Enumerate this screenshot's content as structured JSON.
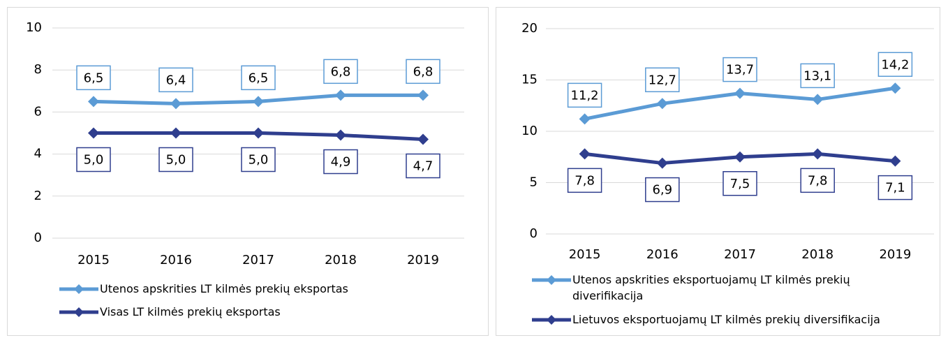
{
  "chart_data": [
    {
      "type": "line",
      "categories": [
        "2015",
        "2016",
        "2017",
        "2018",
        "2019"
      ],
      "ylim": [
        0,
        10
      ],
      "yticks": [
        0,
        2,
        4,
        6,
        8,
        10
      ],
      "grid": true,
      "legend": "bottom",
      "series": [
        {
          "name": "Utenos apskrities LT kilmės prekių eksportas",
          "color": "#5b9bd5",
          "values": [
            6.5,
            6.4,
            6.5,
            6.8,
            6.8
          ],
          "value_labels": [
            "6,5",
            "6,4",
            "6,5",
            "6,8",
            "6,8"
          ]
        },
        {
          "name": "Visas LT kilmės prekių eksportas",
          "color": "#2f3e8e",
          "values": [
            5.0,
            5.0,
            5.0,
            4.9,
            4.7
          ],
          "value_labels": [
            "5,0",
            "5,0",
            "5,0",
            "4,9",
            "4,7"
          ]
        }
      ]
    },
    {
      "type": "line",
      "categories": [
        "2015",
        "2016",
        "2017",
        "2018",
        "2019"
      ],
      "ylim": [
        0,
        20
      ],
      "yticks": [
        0,
        5,
        10,
        15,
        20
      ],
      "grid": true,
      "legend": "bottom",
      "series": [
        {
          "name": "Utenos apskrities eksportuojamų LT kilmės prekių diverifikacija",
          "color": "#5b9bd5",
          "values": [
            11.2,
            12.7,
            13.7,
            13.1,
            14.2
          ],
          "value_labels": [
            "11,2",
            "12,7",
            "13,7",
            "13,1",
            "14,2"
          ]
        },
        {
          "name": "Lietuvos eksportuojamų LT kilmės prekių diversifikacija",
          "color": "#2f3e8e",
          "values": [
            7.8,
            6.9,
            7.5,
            7.8,
            7.1
          ],
          "value_labels": [
            "7,8",
            "6,9",
            "7,5",
            "7,8",
            "7,1"
          ]
        }
      ]
    }
  ]
}
